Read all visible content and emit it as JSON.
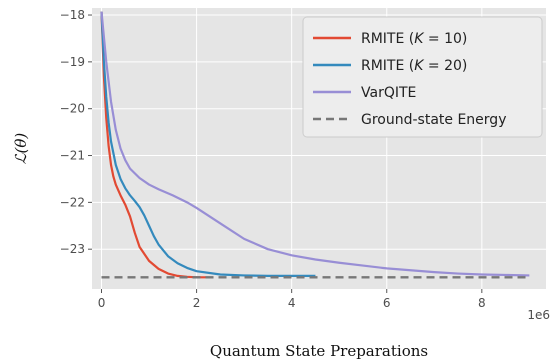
{
  "chart_data": {
    "type": "line",
    "title": "",
    "xlabel": "Quantum State Preparations",
    "ylabel": "ℒ(θ)",
    "x_offset_label": "1e6",
    "x_unit_scale": 1000000,
    "xlim": [
      -200000,
      9350000
    ],
    "ylim": [
      -23.85,
      -17.85
    ],
    "xticks": [
      0,
      2000000,
      4000000,
      6000000,
      8000000
    ],
    "xtick_labels": [
      "0",
      "2",
      "4",
      "6",
      "8"
    ],
    "yticks": [
      -23,
      -22,
      -21,
      -20,
      -19,
      -18
    ],
    "ytick_labels": [
      "−23",
      "−22",
      "−21",
      "−20",
      "−19",
      "−18"
    ],
    "grid": true,
    "background": "#e5e5e5",
    "legend_position": "upper right",
    "series": [
      {
        "name": "RMITE (K = 10)",
        "legend_prefix": "RMITE (",
        "legend_var": "K",
        "legend_suffix": " = 10)",
        "color": "#e24a33",
        "style": "solid",
        "x": [
          0,
          50000,
          100000,
          150000,
          200000,
          250000,
          300000,
          400000,
          500000,
          600000,
          700000,
          800000,
          900000,
          1000000,
          1200000,
          1400000,
          1600000,
          1800000,
          2000000,
          2200000
        ],
        "y": [
          -17.93,
          -19.3,
          -20.2,
          -20.8,
          -21.2,
          -21.45,
          -21.62,
          -21.85,
          -22.05,
          -22.3,
          -22.65,
          -22.95,
          -23.1,
          -23.25,
          -23.42,
          -23.52,
          -23.57,
          -23.59,
          -23.6,
          -23.6
        ]
      },
      {
        "name": "RMITE (K = 20)",
        "legend_prefix": "RMITE (",
        "legend_var": "K",
        "legend_suffix": " = 20)",
        "color": "#348abd",
        "style": "solid",
        "x": [
          0,
          50000,
          100000,
          150000,
          200000,
          300000,
          400000,
          500000,
          600000,
          700000,
          800000,
          900000,
          1000000,
          1100000,
          1200000,
          1400000,
          1600000,
          1800000,
          2000000,
          2500000,
          3000000,
          3500000,
          4000000,
          4500000
        ],
        "y": [
          -17.93,
          -19.0,
          -19.75,
          -20.3,
          -20.7,
          -21.2,
          -21.5,
          -21.7,
          -21.85,
          -21.97,
          -22.1,
          -22.28,
          -22.5,
          -22.72,
          -22.9,
          -23.15,
          -23.3,
          -23.4,
          -23.47,
          -23.54,
          -23.56,
          -23.57,
          -23.57,
          -23.57
        ]
      },
      {
        "name": "VarQITE",
        "color": "#988ed5",
        "style": "solid",
        "x": [
          0,
          100000,
          200000,
          300000,
          400000,
          500000,
          600000,
          800000,
          1000000,
          1200000,
          1500000,
          1800000,
          2000000,
          2500000,
          3000000,
          3500000,
          4000000,
          4500000,
          5000000,
          5500000,
          6000000,
          6500000,
          7000000,
          7500000,
          8000000,
          8500000,
          9000000
        ],
        "y": [
          -17.93,
          -19.0,
          -19.85,
          -20.45,
          -20.85,
          -21.1,
          -21.28,
          -21.48,
          -21.62,
          -21.72,
          -21.85,
          -22.0,
          -22.12,
          -22.45,
          -22.78,
          -23.0,
          -23.13,
          -23.22,
          -23.29,
          -23.35,
          -23.41,
          -23.45,
          -23.49,
          -23.52,
          -23.54,
          -23.55,
          -23.56
        ]
      },
      {
        "name": "Ground-state Energy",
        "color": "#777777",
        "style": "dashed",
        "x": [
          0,
          9000000
        ],
        "y": [
          -23.6,
          -23.6
        ]
      }
    ]
  }
}
